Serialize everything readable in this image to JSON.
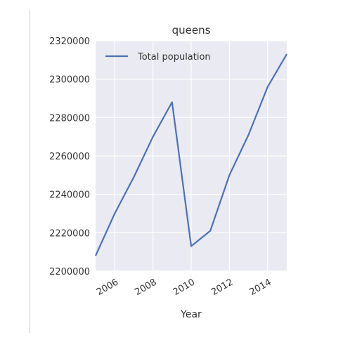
{
  "chart_data": {
    "type": "line",
    "title": "queens",
    "xlabel": "Year",
    "ylabel": "",
    "x": [
      2005,
      2006,
      2007,
      2008,
      2009,
      2010,
      2011,
      2012,
      2013,
      2014,
      2015
    ],
    "series": [
      {
        "name": "Total population",
        "values": [
          2208000,
          2230000,
          2249000,
          2270000,
          2288000,
          2213000,
          2221000,
          2250000,
          2271000,
          2296000,
          2313000
        ]
      }
    ],
    "xlim": [
      2005,
      2015
    ],
    "ylim": [
      2200000,
      2320000
    ],
    "xticks": [
      2006,
      2008,
      2010,
      2012,
      2014
    ],
    "yticks": [
      2200000,
      2220000,
      2240000,
      2260000,
      2280000,
      2300000,
      2320000
    ],
    "grid": true,
    "legend": "top-left",
    "colors": {
      "line": "#4c72b0",
      "plot_bg": "#eaeaf2",
      "grid": "#ffffff"
    }
  }
}
